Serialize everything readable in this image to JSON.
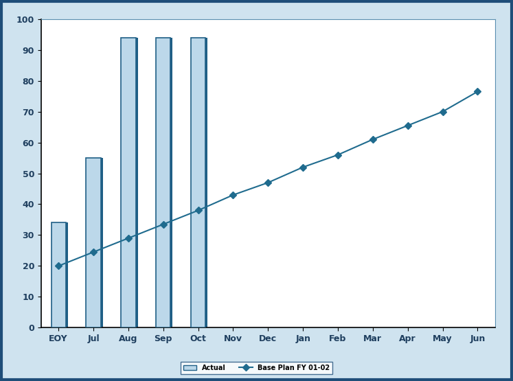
{
  "chart_data": {
    "type": "bar",
    "categories": [
      "EOY",
      "Jul",
      "Aug",
      "Sep",
      "Oct",
      "Nov",
      "Dec",
      "Jan",
      "Feb",
      "Mar",
      "Apr",
      "May",
      "Jun"
    ],
    "series": [
      {
        "name": "Actual",
        "type": "bar",
        "color": "#bcd8ea",
        "values": [
          34,
          55,
          94,
          94,
          94,
          null,
          null,
          null,
          null,
          null,
          null,
          null,
          null
        ]
      },
      {
        "name": "Base Plan FY 01-02",
        "type": "line",
        "color": "#1f6b8e",
        "marker": "diamond",
        "line_style": "solid",
        "values": [
          20,
          24.5,
          29,
          33.5,
          38,
          43,
          47,
          52,
          56,
          61,
          65.5,
          70,
          76.5
        ]
      }
    ],
    "ylim": [
      0,
      100
    ],
    "yticks": [
      0,
      10,
      20,
      30,
      40,
      50,
      60,
      70,
      80,
      90,
      100
    ],
    "grid": false,
    "legend": "lower center"
  }
}
